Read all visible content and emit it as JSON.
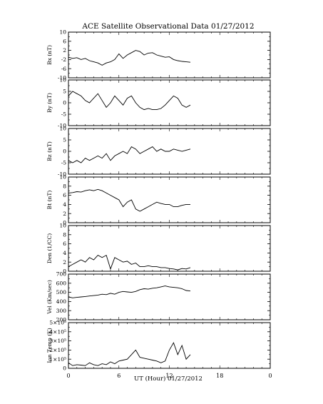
{
  "title": "ACE Satellite Observational Data   01/27/2012",
  "xlabel": "UT (Hour)  01/27/2012",
  "x_ticks": [
    "0",
    "6",
    "12",
    "18",
    "0"
  ],
  "chart_data": [
    {
      "type": "line",
      "ylabel": "Bx (nT)",
      "ylim": [
        -10,
        10
      ],
      "yticks": [
        -10,
        -6,
        -2,
        2,
        6,
        10
      ],
      "ytick_labels": [
        "-10",
        "-6",
        "-2",
        "2",
        "6",
        "10"
      ],
      "xlim": [
        0,
        24
      ],
      "x": [
        0,
        0.5,
        1,
        1.5,
        2,
        2.5,
        3,
        3.5,
        4,
        4.5,
        5,
        5.5,
        6,
        6.5,
        7,
        7.5,
        8,
        8.5,
        9,
        9.5,
        10,
        10.5,
        11,
        11.5,
        12,
        12.5,
        13,
        13.5,
        14,
        14.5
      ],
      "y": [
        -1,
        -1.5,
        -1.2,
        -2,
        -1.5,
        -2.5,
        -3,
        -3.5,
        -4.5,
        -3.5,
        -3,
        -2,
        0.5,
        -1.5,
        0,
        1,
        2,
        1.5,
        0,
        0.8,
        1,
        0,
        -0.5,
        -1,
        -0.8,
        -2,
        -2.5,
        -2.8,
        -3,
        -3.2
      ]
    },
    {
      "type": "line",
      "ylabel": "By (nT)",
      "ylim": [
        -10,
        10
      ],
      "yticks": [
        -10,
        -5,
        0,
        5,
        10
      ],
      "ytick_labels": [
        "-10",
        "-5",
        "0",
        "5",
        "10"
      ],
      "xlim": [
        0,
        24
      ],
      "x": [
        0,
        0.5,
        1,
        1.5,
        2,
        2.5,
        3,
        3.5,
        4,
        4.5,
        5,
        5.5,
        6,
        6.5,
        7,
        7.5,
        8,
        8.5,
        9,
        9.5,
        10,
        10.5,
        11,
        11.5,
        12,
        12.5,
        13,
        13.5,
        14,
        14.5
      ],
      "y": [
        3,
        5,
        4,
        3,
        1,
        0,
        2,
        4,
        1,
        -2,
        0,
        3,
        1,
        -1,
        2,
        3,
        0,
        -2,
        -3,
        -2.5,
        -3,
        -3,
        -2.5,
        -1,
        1,
        3,
        2,
        -1,
        -2,
        -1
      ]
    },
    {
      "type": "line",
      "ylabel": "Bz (nT)",
      "ylim": [
        -10,
        10
      ],
      "yticks": [
        -10,
        -5,
        0,
        5,
        10
      ],
      "ytick_labels": [
        "-10",
        "-5",
        "0",
        "5",
        "10"
      ],
      "xlim": [
        0,
        24
      ],
      "x": [
        0,
        0.5,
        1,
        1.5,
        2,
        2.5,
        3,
        3.5,
        4,
        4.5,
        5,
        5.5,
        6,
        6.5,
        7,
        7.5,
        8,
        8.5,
        9,
        9.5,
        10,
        10.5,
        11,
        11.5,
        12,
        12.5,
        13,
        13.5,
        14,
        14.5
      ],
      "y": [
        -4,
        -5,
        -4,
        -5,
        -3,
        -4,
        -3,
        -2,
        -3,
        -1,
        -4,
        -2,
        -1,
        0,
        -1,
        2,
        1,
        -1,
        0,
        1,
        2,
        0,
        1,
        0,
        0,
        1,
        0.5,
        0,
        0.5,
        1
      ]
    },
    {
      "type": "line",
      "ylabel": "Bt (nT)",
      "ylim": [
        0,
        10
      ],
      "yticks": [
        0,
        2,
        4,
        6,
        8,
        10
      ],
      "ytick_labels": [
        "0",
        "2",
        "4",
        "6",
        "8",
        "10"
      ],
      "xlim": [
        0,
        24
      ],
      "x": [
        0,
        0.5,
        1,
        1.5,
        2,
        2.5,
        3,
        3.5,
        4,
        4.5,
        5,
        5.5,
        6,
        6.5,
        7,
        7.5,
        8,
        8.5,
        9,
        9.5,
        10,
        10.5,
        11,
        11.5,
        12,
        12.5,
        13,
        13.5,
        14,
        14.5
      ],
      "y": [
        6.5,
        6.6,
        6.8,
        6.7,
        7,
        7.2,
        7,
        7.3,
        7,
        6.5,
        6,
        5.5,
        5,
        3.5,
        4.5,
        5,
        3,
        2.5,
        3,
        3.5,
        4,
        4.5,
        4.2,
        4,
        4,
        3.5,
        3.5,
        3.8,
        4,
        4
      ]
    },
    {
      "type": "line",
      "ylabel": "Den (1/CC)",
      "ylim": [
        0,
        10
      ],
      "yticks": [
        0,
        2,
        4,
        6,
        8,
        10
      ],
      "ytick_labels": [
        "0",
        "2",
        "4",
        "6",
        "8",
        "10"
      ],
      "xlim": [
        0,
        24
      ],
      "x": [
        0,
        0.5,
        1,
        1.5,
        2,
        2.5,
        3,
        3.5,
        4,
        4.5,
        5,
        5.5,
        6,
        6.5,
        7,
        7.5,
        8,
        8.5,
        9,
        9.5,
        10,
        10.5,
        11,
        11.5,
        12,
        12.5,
        13,
        13.5,
        14,
        14.5
      ],
      "y": [
        1,
        1.5,
        2,
        2.5,
        2,
        3,
        2.5,
        3.5,
        3,
        3.5,
        0.5,
        3,
        2.5,
        2,
        2.2,
        1.5,
        1.8,
        1,
        1,
        1.2,
        1,
        1,
        0.8,
        0.8,
        0.6,
        0.5,
        0.3,
        0.6,
        0.5,
        0.8
      ]
    },
    {
      "type": "line",
      "ylabel": "Vel (Km/sec)",
      "ylim": [
        200,
        700
      ],
      "yticks": [
        200,
        300,
        400,
        500,
        600,
        700
      ],
      "ytick_labels": [
        "200",
        "300",
        "400",
        "500",
        "600",
        "700"
      ],
      "xlim": [
        0,
        24
      ],
      "x": [
        0,
        0.5,
        1,
        1.5,
        2,
        2.5,
        3,
        3.5,
        4,
        4.5,
        5,
        5.5,
        6,
        6.5,
        7,
        7.5,
        8,
        8.5,
        9,
        9.5,
        10,
        10.5,
        11,
        11.5,
        12,
        12.5,
        13,
        13.5,
        14,
        14.5
      ],
      "y": [
        450,
        440,
        445,
        450,
        455,
        460,
        465,
        470,
        480,
        475,
        490,
        480,
        500,
        510,
        505,
        500,
        510,
        530,
        540,
        535,
        545,
        550,
        560,
        570,
        560,
        555,
        550,
        540,
        520,
        515
      ]
    },
    {
      "type": "line",
      "ylabel": "Ion Temp (K)",
      "ylim": [
        0,
        500000
      ],
      "yticks": [
        0,
        100000,
        200000,
        300000,
        400000,
        500000
      ],
      "ytick_labels": [
        "0",
        "1×10⁵",
        "2×10⁵",
        "3×10⁵",
        "4×10⁵",
        "5×10⁵"
      ],
      "xlim": [
        0,
        24
      ],
      "x": [
        0,
        0.5,
        1,
        1.5,
        2,
        2.5,
        3,
        3.5,
        4,
        4.5,
        5,
        5.5,
        6,
        6.5,
        7,
        7.5,
        8,
        8.5,
        9,
        9.5,
        10,
        10.5,
        11,
        11.5,
        12,
        12.5,
        13,
        13.5,
        14,
        14.5
      ],
      "y": [
        60000,
        30000,
        40000,
        35000,
        30000,
        60000,
        40000,
        30000,
        50000,
        40000,
        70000,
        50000,
        80000,
        90000,
        100000,
        150000,
        200000,
        120000,
        110000,
        100000,
        90000,
        80000,
        60000,
        80000,
        200000,
        280000,
        150000,
        250000,
        100000,
        150000
      ]
    }
  ]
}
